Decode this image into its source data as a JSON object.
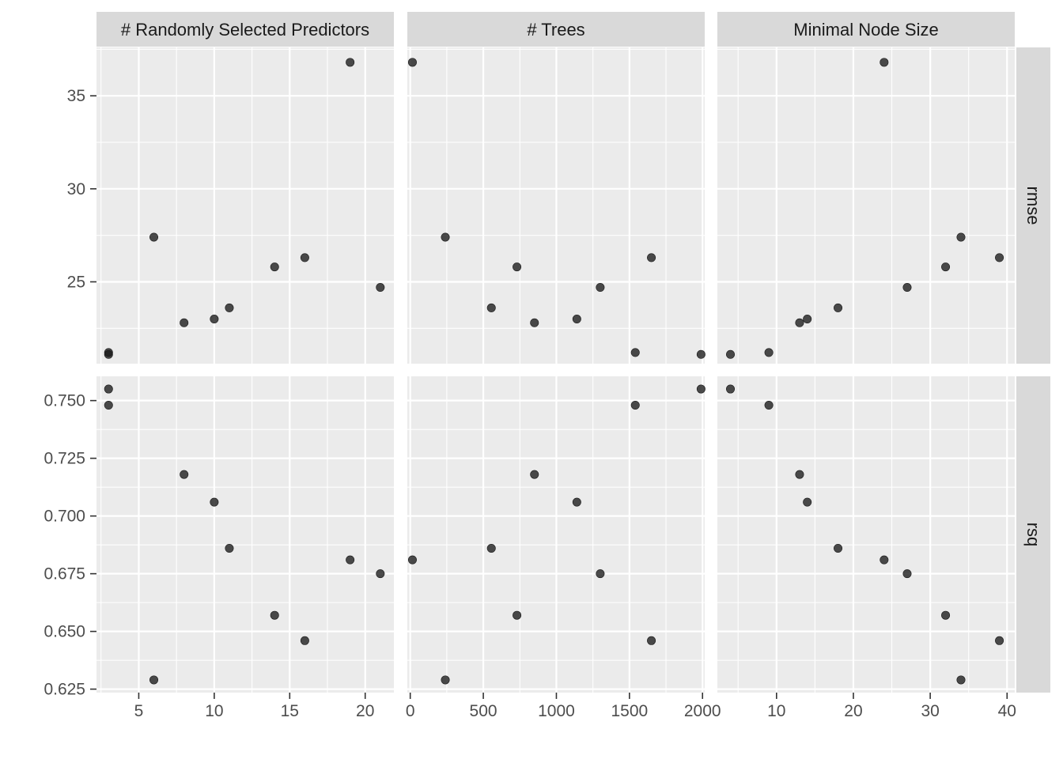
{
  "chart_data": {
    "type": "scatter",
    "facet_cols": [
      "# Randomly Selected Predictors",
      "# Trees",
      "Minimal Node Size"
    ],
    "facet_rows": [
      "rmse",
      "rsq"
    ],
    "y_ticks": {
      "rmse": [
        "25",
        "30",
        "35"
      ],
      "rsq": [
        "0.625",
        "0.650",
        "0.675",
        "0.700",
        "0.725",
        "0.750"
      ]
    },
    "x_ticks": {
      "# Randomly Selected Predictors": [
        "5",
        "10",
        "15",
        "20"
      ],
      "# Trees": [
        "0",
        "500",
        "1000",
        "1500",
        "2000"
      ],
      "Minimal Node Size": [
        "10",
        "20",
        "30",
        "40"
      ]
    },
    "x_ranges": [
      [
        2.2,
        21.9
      ],
      [
        -20,
        2015
      ],
      [
        2.3,
        41.0
      ]
    ],
    "y_ranges": {
      "rmse": [
        20.6,
        37.6
      ],
      "rsq": [
        0.6235,
        0.7605
      ]
    },
    "models": [
      {
        "mtry": 3,
        "trees": 1540,
        "min_n": 9,
        "rmse": 21.2,
        "rsq": 0.748
      },
      {
        "mtry": 3,
        "trees": 1990,
        "min_n": 4,
        "rmse": 21.1,
        "rsq": 0.755
      },
      {
        "mtry": 6,
        "trees": 240,
        "min_n": 34,
        "rmse": 27.4,
        "rsq": 0.629
      },
      {
        "mtry": 8,
        "trees": 850,
        "min_n": 13,
        "rmse": 22.8,
        "rsq": 0.718
      },
      {
        "mtry": 10,
        "trees": 1140,
        "min_n": 14,
        "rmse": 23.0,
        "rsq": 0.706
      },
      {
        "mtry": 11,
        "trees": 555,
        "min_n": 18,
        "rmse": 23.6,
        "rsq": 0.686
      },
      {
        "mtry": 14,
        "trees": 730,
        "min_n": 32,
        "rmse": 25.8,
        "rsq": 0.657
      },
      {
        "mtry": 16,
        "trees": 1650,
        "min_n": 39,
        "rmse": 26.3,
        "rsq": 0.646
      },
      {
        "mtry": 19,
        "trees": 15,
        "min_n": 24,
        "rmse": 36.8,
        "rsq": 0.681
      },
      {
        "mtry": 21,
        "trees": 1300,
        "min_n": 27,
        "rmse": 24.7,
        "rsq": 0.675
      }
    ]
  },
  "colors": {
    "panel_bg": "#ebebeb",
    "strip_bg": "#d9d9d9",
    "grid": "#ffffff",
    "point": "#1a1a1a"
  }
}
